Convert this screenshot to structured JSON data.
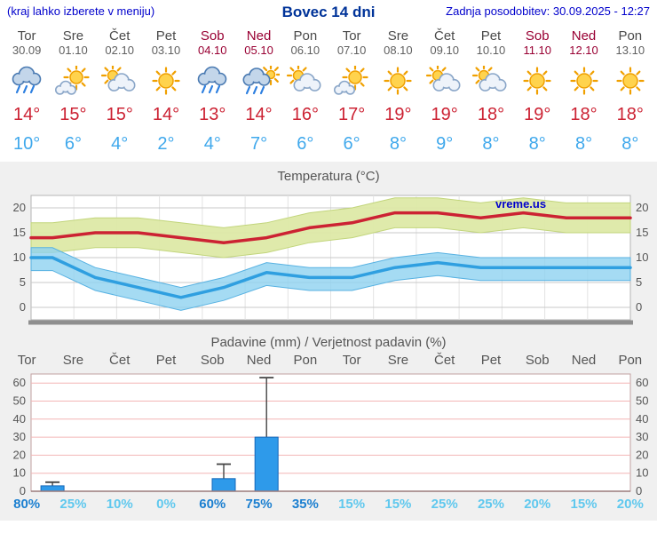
{
  "header": {
    "left_note": "(kraj lahko izberete v meniju)",
    "title": "Bovec 14 dni",
    "updated": "Zadnja posodobitev: 30.09.2025 - 12:27"
  },
  "days": [
    {
      "name": "Tor",
      "date": "30.09",
      "weekend": false,
      "icon": "rain",
      "tmax": 14,
      "tmin": 10
    },
    {
      "name": "Sre",
      "date": "01.10",
      "weekend": false,
      "icon": "mostly-sunny",
      "tmax": 15,
      "tmin": 6
    },
    {
      "name": "Čet",
      "date": "02.10",
      "weekend": false,
      "icon": "partly-cloudy",
      "tmax": 15,
      "tmin": 4
    },
    {
      "name": "Pet",
      "date": "03.10",
      "weekend": false,
      "icon": "sunny",
      "tmax": 14,
      "tmin": 2
    },
    {
      "name": "Sob",
      "date": "04.10",
      "weekend": true,
      "icon": "rain",
      "tmax": 13,
      "tmin": 4
    },
    {
      "name": "Ned",
      "date": "05.10",
      "weekend": true,
      "icon": "rain-sun",
      "tmax": 14,
      "tmin": 7
    },
    {
      "name": "Pon",
      "date": "06.10",
      "weekend": false,
      "icon": "partly-cloudy",
      "tmax": 16,
      "tmin": 6
    },
    {
      "name": "Tor",
      "date": "07.10",
      "weekend": false,
      "icon": "mostly-sunny",
      "tmax": 17,
      "tmin": 6
    },
    {
      "name": "Sre",
      "date": "08.10",
      "weekend": false,
      "icon": "sunny",
      "tmax": 19,
      "tmin": 8
    },
    {
      "name": "Čet",
      "date": "09.10",
      "weekend": false,
      "icon": "partly-cloudy",
      "tmax": 19,
      "tmin": 9
    },
    {
      "name": "Pet",
      "date": "10.10",
      "weekend": false,
      "icon": "partly-cloudy",
      "tmax": 18,
      "tmin": 8
    },
    {
      "name": "Sob",
      "date": "11.10",
      "weekend": true,
      "icon": "sunny",
      "tmax": 19,
      "tmin": 8
    },
    {
      "name": "Ned",
      "date": "12.10",
      "weekend": true,
      "icon": "sunny",
      "tmax": 18,
      "tmin": 8
    },
    {
      "name": "Pon",
      "date": "13.10",
      "weekend": false,
      "icon": "sunny",
      "tmax": 18,
      "tmin": 8
    }
  ],
  "chart_data": [
    {
      "type": "line",
      "title": "Temperatura (°C)",
      "watermark": "vreme.us",
      "categories": [
        "Tor 30.09",
        "Sre 01.10",
        "Čet 02.10",
        "Pet 03.10",
        "Sob 04.10",
        "Ned 05.10",
        "Pon 06.10",
        "Tor 07.10",
        "Sre 08.10",
        "Čet 09.10",
        "Pet 10.10",
        "Sob 11.10",
        "Ned 12.10",
        "Pon 13.10"
      ],
      "series": [
        {
          "name": "Najvišja temperatura",
          "color": "#cc2233",
          "values": [
            14,
            15,
            15,
            14,
            13,
            14,
            16,
            17,
            19,
            19,
            18,
            19,
            18,
            18
          ]
        },
        {
          "name": "Najnižja temperatura",
          "color": "#2f9fe0",
          "values": [
            10,
            6,
            4,
            2,
            4,
            7,
            6,
            6,
            8,
            9,
            8,
            8,
            8,
            8
          ]
        }
      ],
      "yticks": [
        0,
        5,
        10,
        15,
        20
      ],
      "ylim": [
        -2.5,
        22.5
      ],
      "grid": true,
      "legend": "none"
    },
    {
      "type": "bar",
      "title": "Padavine (mm) / Verjetnost padavin (%)",
      "categories": [
        "Tor",
        "Sre",
        "Čet",
        "Pet",
        "Sob",
        "Ned",
        "Pon",
        "Tor",
        "Sre",
        "Čet",
        "Pet",
        "Sob",
        "Ned",
        "Pon"
      ],
      "precip_mm": [
        3,
        0,
        0,
        0,
        7,
        30,
        0,
        0,
        0,
        0,
        0,
        0,
        0,
        0
      ],
      "precip_max_mm": [
        5,
        0,
        0,
        0,
        15,
        63,
        0,
        0,
        0,
        0,
        0,
        0,
        0,
        0
      ],
      "probability_percent": [
        80,
        25,
        10,
        0,
        60,
        75,
        35,
        15,
        15,
        25,
        25,
        20,
        15,
        20
      ],
      "yticks": [
        0,
        10,
        20,
        30,
        40,
        50,
        60
      ],
      "ylim": [
        0,
        65
      ],
      "grid": true,
      "legend": "none"
    }
  ],
  "colors": {
    "accent_blue": "#0000cc",
    "title_blue": "#003399",
    "weekend_red": "#990033",
    "tmax_red": "#cc2233",
    "tmin_blue": "#3fa8ec",
    "band_max": "#dde9a6",
    "band_min": "#8fd2f0",
    "bar_fill": "#2e9aea",
    "bar_edge": "#1668b8",
    "prob_strong": "#1b7fd0",
    "prob_light": "#5fc8ee",
    "panel_bg": "#f0f0f0",
    "precip_grid_pink": "#f3b6b6"
  }
}
